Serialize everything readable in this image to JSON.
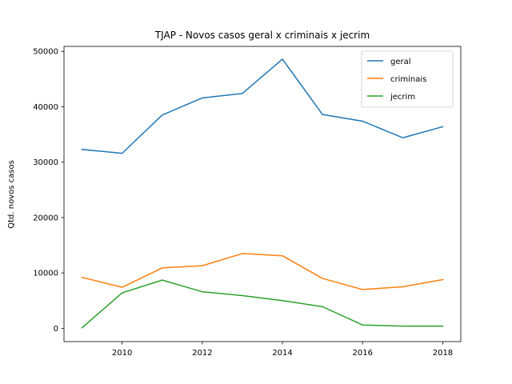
{
  "chart_data": {
    "type": "line",
    "title": "TJAP - Novos casos geral x criminais x jecrim",
    "xlabel": "",
    "ylabel": "Qtd. novos casos",
    "x": [
      2009,
      2010,
      2011,
      2012,
      2013,
      2014,
      2015,
      2016,
      2017,
      2018
    ],
    "xlim": [
      2008.55,
      2018.45
    ],
    "ylim": [
      -2400,
      50900
    ],
    "xticks": [
      2010,
      2012,
      2014,
      2016,
      2018
    ],
    "yticks": [
      0,
      10000,
      20000,
      30000,
      40000,
      50000
    ],
    "grid": false,
    "legend_position": "top-right",
    "series": [
      {
        "name": "geral",
        "color": "#1f77b4",
        "values": [
          32300,
          31600,
          38500,
          41600,
          42400,
          48600,
          38600,
          37400,
          34400,
          36400
        ]
      },
      {
        "name": "criminais",
        "color": "#ff7f0e",
        "values": [
          9200,
          7400,
          10900,
          11300,
          13500,
          13100,
          9000,
          7000,
          7500,
          8800
        ]
      },
      {
        "name": "jecrim",
        "color": "#2ca02c",
        "values": [
          100,
          6400,
          8700,
          6600,
          5900,
          5000,
          3900,
          600,
          400,
          400
        ]
      }
    ]
  }
}
